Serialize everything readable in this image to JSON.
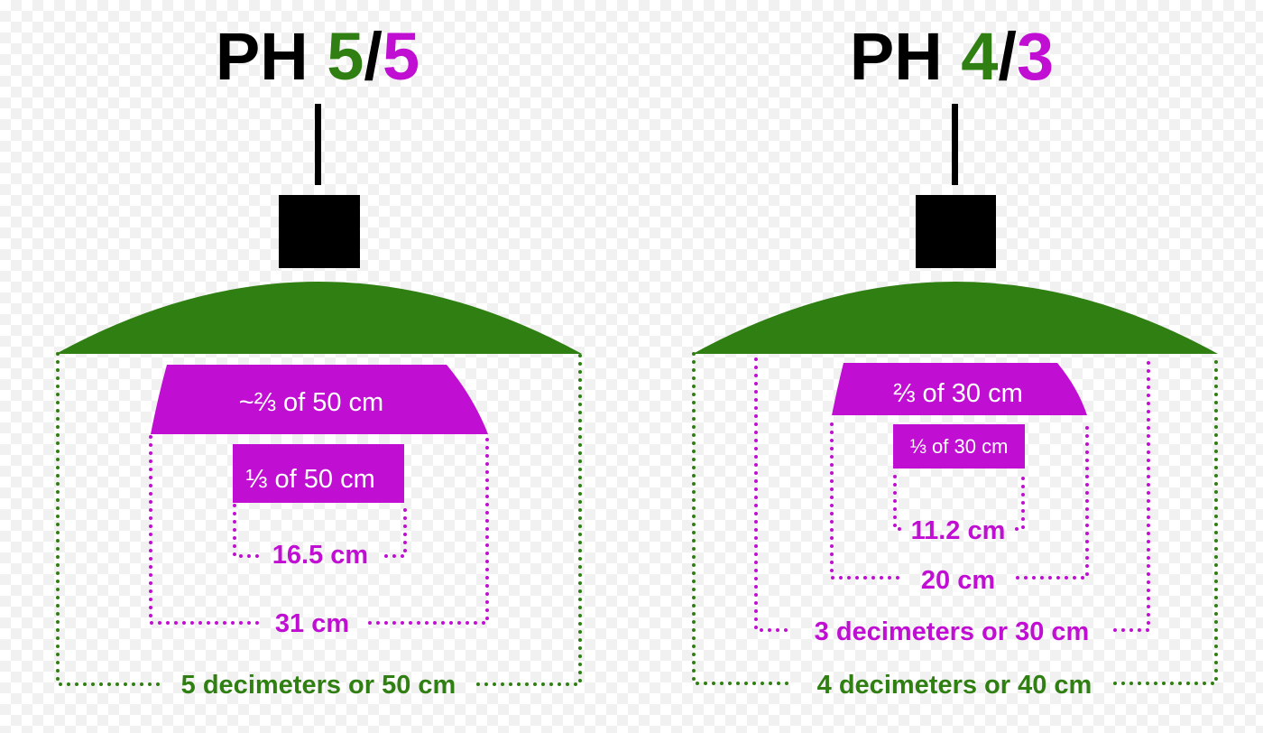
{
  "colors": {
    "green": "#2f7f12",
    "magenta": "#c00fd2",
    "black": "#000000"
  },
  "left": {
    "title": {
      "prefix": "PH ",
      "green_num": "5",
      "slash": "/",
      "magenta_num": "5"
    },
    "outer_label": "5 decimeters or 50 cm",
    "trapezoid_label": "~⅔ of 50 cm",
    "rect_label": "⅓ of 50 cm",
    "inner_label": "16.5 cm",
    "mid_label": "31 cm"
  },
  "right": {
    "title": {
      "prefix": "PH ",
      "green_num": "4",
      "slash": "/",
      "magenta_num": "3"
    },
    "outer_label": "4 decimeters or 40 cm",
    "magenta_outer_label": "3 decimeters or 30 cm",
    "trapezoid_label": "⅔ of 30 cm",
    "rect_label": "⅓ of 30 cm",
    "inner_label": "11.2 cm",
    "mid_label": "20 cm"
  }
}
